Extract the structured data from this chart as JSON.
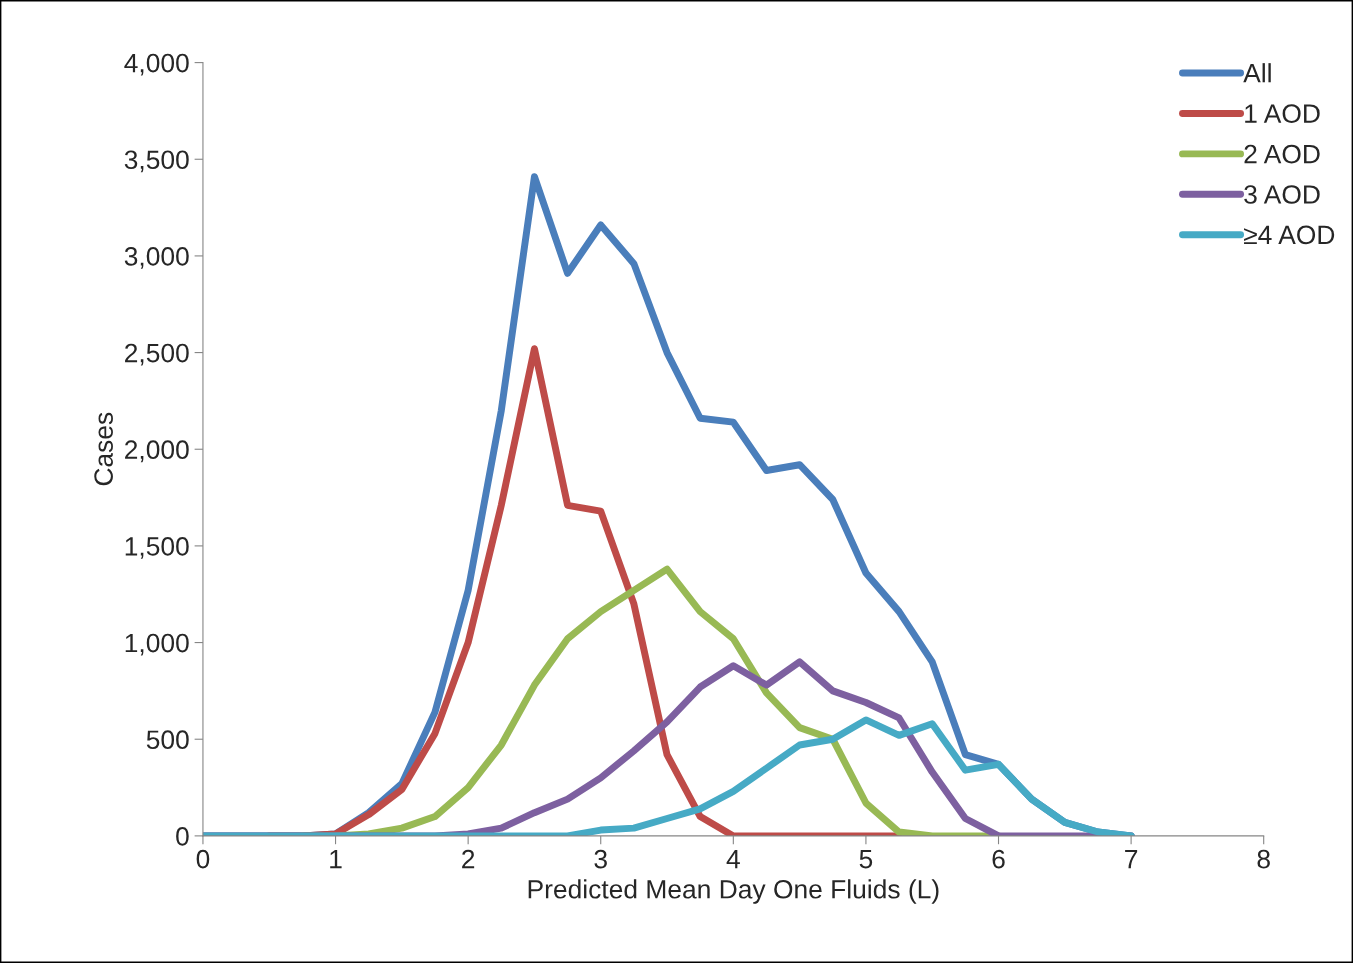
{
  "chart_data": {
    "type": "line",
    "xlabel": "Predicted Mean Day One Fluids (L)",
    "ylabel": "Cases",
    "x": [
      0,
      0.25,
      0.5,
      0.75,
      1,
      1.25,
      1.5,
      1.75,
      2,
      2.25,
      2.5,
      2.75,
      3,
      3.25,
      3.5,
      3.75,
      4,
      4.25,
      4.5,
      4.75,
      5,
      5.25,
      5.5,
      5.75,
      6,
      6.25,
      6.5,
      6.75,
      7
    ],
    "series": [
      {
        "name": "All",
        "color": "#4a7ebb",
        "values": [
          0,
          0,
          0,
          0,
          10,
          120,
          270,
          640,
          1270,
          2200,
          3410,
          2910,
          3160,
          2960,
          2500,
          2160,
          2140,
          1890,
          1920,
          1740,
          1360,
          1160,
          900,
          420,
          370,
          190,
          70,
          20,
          0
        ]
      },
      {
        "name": "1 AOD",
        "color": "#be4b48",
        "values": [
          null,
          null,
          0,
          0,
          10,
          110,
          240,
          530,
          1000,
          1710,
          2520,
          1710,
          1680,
          1200,
          420,
          100,
          0,
          0,
          0,
          0,
          0,
          0,
          null,
          null,
          null,
          null,
          null,
          null,
          null
        ]
      },
      {
        "name": "2 AOD",
        "color": "#98b954",
        "values": [
          null,
          null,
          null,
          0,
          0,
          10,
          40,
          100,
          250,
          470,
          780,
          1020,
          1160,
          1270,
          1380,
          1160,
          1020,
          740,
          560,
          500,
          170,
          20,
          0,
          0,
          0,
          null,
          null,
          null,
          null
        ]
      },
      {
        "name": "3 AOD",
        "color": "#7d60a0",
        "values": [
          0,
          0,
          0,
          0,
          0,
          0,
          0,
          0,
          10,
          40,
          120,
          190,
          300,
          440,
          590,
          770,
          880,
          780,
          900,
          750,
          690,
          610,
          330,
          90,
          0,
          0,
          0,
          0,
          0
        ]
      },
      {
        "name": "≥4 AOD",
        "color": "#46aac5",
        "values": [
          0,
          0,
          0,
          0,
          0,
          0,
          0,
          0,
          0,
          0,
          0,
          0,
          30,
          40,
          90,
          140,
          230,
          350,
          470,
          500,
          600,
          520,
          580,
          340,
          370,
          190,
          70,
          20,
          0
        ]
      }
    ],
    "xlim": [
      0,
      8
    ],
    "xticks": [
      0,
      1,
      2,
      3,
      4,
      5,
      6,
      7,
      8
    ],
    "ylim": [
      0,
      4000
    ],
    "yticks": [
      0,
      500,
      {
        "value": 1000,
        "label": "1,000"
      },
      {
        "value": 1500,
        "label": "1,500"
      },
      {
        "value": 2000,
        "label": "2,000"
      },
      {
        "value": 2500,
        "label": "2,500"
      },
      {
        "value": 3000,
        "label": "3,000"
      },
      {
        "value": 3500,
        "label": "3,500"
      },
      {
        "value": 4000,
        "label": "4,000"
      }
    ],
    "grid": false,
    "legend": "top right",
    "marker": "none",
    "line_style": "solid"
  }
}
